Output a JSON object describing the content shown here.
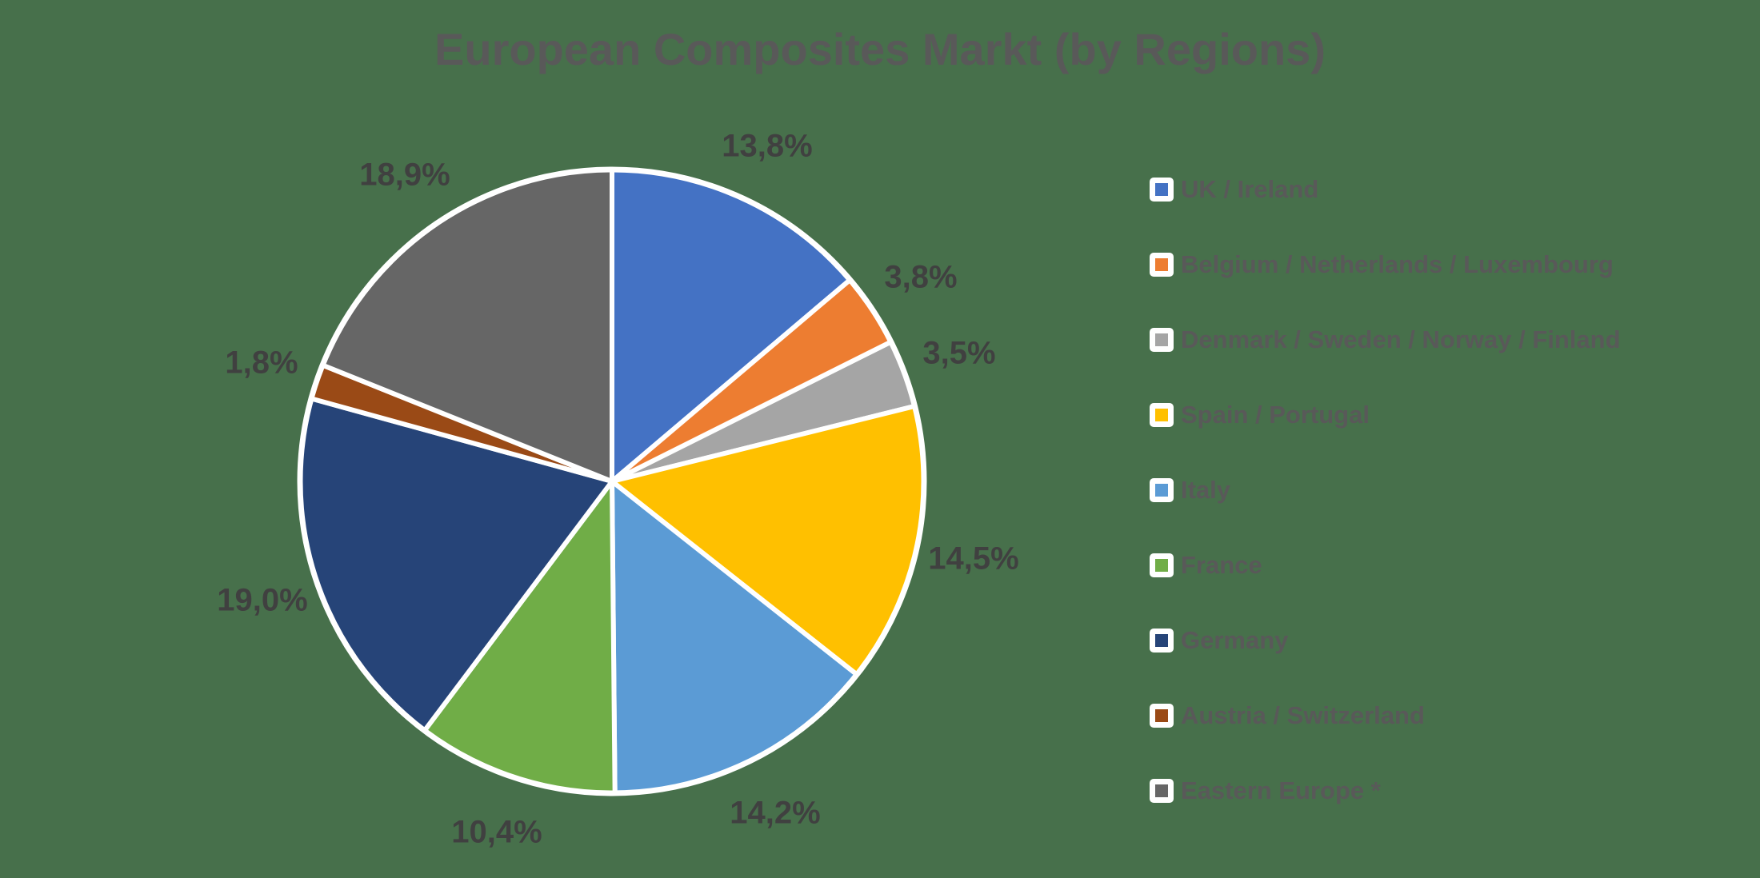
{
  "title": "European Composites Markt (by Regions)",
  "colors": {
    "background": "#47704B",
    "title_text": "#595959",
    "data_label_text": "#404040",
    "legend_text": "#595959",
    "slice_border": "#FFFFFF",
    "legend_marker_background": "#FFFFFF"
  },
  "chart_data": {
    "type": "pie",
    "title": "European Composites Markt (by Regions)",
    "start_angle_deg": 0,
    "direction": "clockwise",
    "legend_position": "right",
    "data_labels": "outside, percent with comma decimal separator",
    "series": [
      {
        "label": "UK / Ireland",
        "value": 13.8,
        "display": "13,8%",
        "color": "#4472C4"
      },
      {
        "label": "Belgium / Netherlands / Luxembourg",
        "value": 3.8,
        "display": "3,8%",
        "color": "#ED7D31"
      },
      {
        "label": "Denmark / Sweden / Norway / Finland",
        "value": 3.5,
        "display": "3,5%",
        "color": "#A5A5A5"
      },
      {
        "label": "Spain / Portugal",
        "value": 14.5,
        "display": "14,5%",
        "color": "#FFC000"
      },
      {
        "label": "Italy",
        "value": 14.2,
        "display": "14,2%",
        "color": "#5B9BD5"
      },
      {
        "label": "France",
        "value": 10.4,
        "display": "10,4%",
        "color": "#70AD47"
      },
      {
        "label": "Germany",
        "value": 19.0,
        "display": "19,0%",
        "color": "#264478"
      },
      {
        "label": "Austria / Switzerland",
        "value": 1.8,
        "display": "1,8%",
        "color": "#9A4A16"
      },
      {
        "label": "Eastern Europe *",
        "value": 18.9,
        "display": "18,9%",
        "color": "#666666"
      }
    ]
  }
}
